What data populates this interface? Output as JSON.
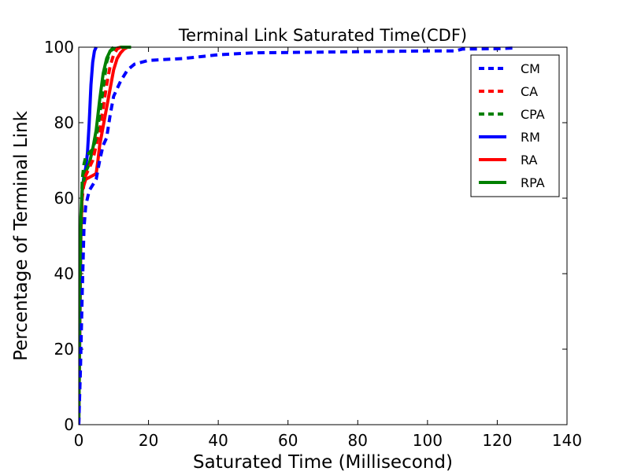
{
  "chart_data": {
    "type": "line",
    "title": "Terminal Link Saturated Time(CDF)",
    "xlabel": "Saturated Time (Millisecond)",
    "ylabel": "Percentage of Terminal Link",
    "xlim": [
      0,
      140
    ],
    "ylim": [
      0,
      100
    ],
    "xticks": [
      0,
      20,
      40,
      60,
      80,
      100,
      120,
      140
    ],
    "yticks": [
      0,
      20,
      40,
      60,
      80,
      100
    ],
    "grid": false,
    "legend_position": "top-right",
    "series": [
      {
        "name": "CM",
        "color": "#0000ff",
        "style": "dashed",
        "points": [
          [
            0,
            0
          ],
          [
            0.5,
            15
          ],
          [
            1,
            35
          ],
          [
            1.5,
            52
          ],
          [
            2,
            58
          ],
          [
            3,
            62
          ],
          [
            5,
            65
          ],
          [
            6,
            70
          ],
          [
            7,
            74
          ],
          [
            8,
            76
          ],
          [
            9,
            82
          ],
          [
            10,
            87
          ],
          [
            12,
            91
          ],
          [
            14,
            94
          ],
          [
            16,
            95.5
          ],
          [
            20,
            96.5
          ],
          [
            30,
            97
          ],
          [
            40,
            98
          ],
          [
            50,
            98.5
          ],
          [
            80,
            98.8
          ],
          [
            100,
            99
          ],
          [
            108,
            99
          ],
          [
            110,
            99.5
          ],
          [
            120,
            99.6
          ],
          [
            125,
            99.8
          ]
        ]
      },
      {
        "name": "CA",
        "color": "#ff0000",
        "style": "dashed",
        "points": [
          [
            0,
            0
          ],
          [
            0.3,
            20
          ],
          [
            0.6,
            45
          ],
          [
            1,
            60
          ],
          [
            1.5,
            64
          ],
          [
            2,
            66
          ],
          [
            3,
            68
          ],
          [
            4,
            70
          ],
          [
            5,
            74
          ],
          [
            6,
            78
          ],
          [
            7,
            84
          ],
          [
            8,
            90
          ],
          [
            9,
            95
          ],
          [
            10,
            98
          ],
          [
            11,
            99.5
          ],
          [
            12,
            100
          ]
        ]
      },
      {
        "name": "CPA",
        "color": "#008000",
        "style": "dashed",
        "points": [
          [
            0,
            0
          ],
          [
            0.3,
            25
          ],
          [
            0.6,
            50
          ],
          [
            1,
            65
          ],
          [
            1.5,
            69
          ],
          [
            2,
            71
          ],
          [
            3,
            72
          ],
          [
            4,
            73
          ],
          [
            5,
            76
          ],
          [
            6,
            82
          ],
          [
            7,
            89
          ],
          [
            8,
            96
          ],
          [
            9,
            99
          ],
          [
            10,
            100
          ]
        ]
      },
      {
        "name": "RM",
        "color": "#0000ff",
        "style": "solid",
        "points": [
          [
            0,
            0
          ],
          [
            0.3,
            25
          ],
          [
            0.6,
            50
          ],
          [
            1,
            62
          ],
          [
            1.5,
            66
          ],
          [
            2,
            68
          ],
          [
            2.5,
            72
          ],
          [
            3,
            80
          ],
          [
            3.5,
            90
          ],
          [
            4,
            96
          ],
          [
            4.5,
            99
          ],
          [
            5,
            100
          ]
        ]
      },
      {
        "name": "RA",
        "color": "#ff0000",
        "style": "solid",
        "points": [
          [
            0,
            0
          ],
          [
            0.3,
            25
          ],
          [
            0.6,
            50
          ],
          [
            1,
            62
          ],
          [
            2,
            65
          ],
          [
            4,
            66
          ],
          [
            5,
            66.5
          ],
          [
            5.5,
            70
          ],
          [
            6,
            74
          ],
          [
            7,
            79
          ],
          [
            8,
            84
          ],
          [
            9,
            89
          ],
          [
            10,
            94
          ],
          [
            11,
            97
          ],
          [
            12,
            98.5
          ],
          [
            13,
            99.5
          ],
          [
            14,
            100
          ]
        ]
      },
      {
        "name": "RPA",
        "color": "#008000",
        "style": "solid",
        "points": [
          [
            0,
            0
          ],
          [
            0.3,
            30
          ],
          [
            0.6,
            55
          ],
          [
            1,
            63
          ],
          [
            2,
            67
          ],
          [
            3,
            69
          ],
          [
            4,
            73
          ],
          [
            5,
            78
          ],
          [
            6,
            86
          ],
          [
            7,
            93
          ],
          [
            8,
            97
          ],
          [
            9,
            99
          ],
          [
            10,
            99.5
          ],
          [
            12,
            100
          ],
          [
            15,
            100
          ]
        ]
      }
    ]
  }
}
